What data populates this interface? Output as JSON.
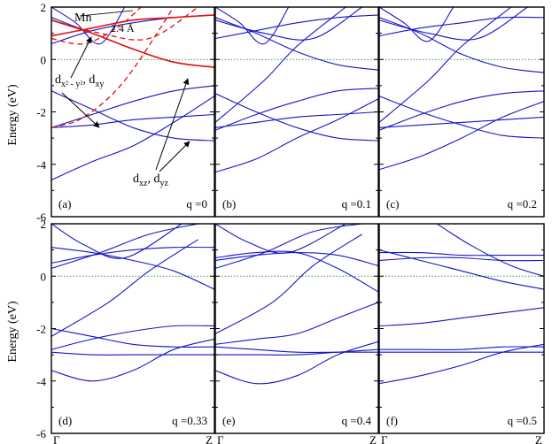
{
  "figure": {
    "y_axis_label": "Energy (eV)",
    "x_tick_start": "Γ",
    "x_tick_end": "Z"
  },
  "colors": {
    "band": "#1515c8",
    "mn": "#e01010",
    "fermi": "#3a9a3a",
    "axis": "#000000"
  },
  "chart_data": [
    {
      "type": "line",
      "panel": "(a)",
      "q_label": "q =0",
      "ylim": [
        -6,
        2
      ],
      "y_ticks": [
        -6,
        -4,
        -2,
        0,
        2
      ],
      "xlim": [
        0,
        1
      ],
      "x_ticks": [
        "Γ",
        "Z"
      ],
      "fermi_level": 0,
      "annotations": [
        "Mn",
        "2.4 Å",
        "d_{x^2-y^2}, d_{xy}",
        "d_{xz}, d_{yz}"
      ],
      "series": [
        {
          "kind": "band",
          "x": [
            0,
            0.25,
            0.5,
            0.75,
            1
          ],
          "y": [
            -4.6,
            -3.9,
            -3.3,
            -2.4,
            -1.4
          ]
        },
        {
          "kind": "band",
          "x": [
            0,
            0.25,
            0.5,
            0.75,
            1
          ],
          "y": [
            -2.6,
            -2.5,
            -2.3,
            -2.2,
            -2.1
          ]
        },
        {
          "kind": "band",
          "x": [
            0,
            0.25,
            0.5,
            0.75,
            1
          ],
          "y": [
            -1.2,
            -1.9,
            -2.6,
            -3.0,
            -3.1
          ]
        },
        {
          "kind": "band",
          "x": [
            0,
            0.25,
            0.5,
            0.75,
            1
          ],
          "y": [
            -2.6,
            -2.1,
            -1.6,
            -1.2,
            -1.0
          ]
        },
        {
          "kind": "band",
          "x": [
            0,
            0.25,
            0.5,
            0.75,
            1
          ],
          "y": [
            0.6,
            1.1,
            1.4,
            1.6,
            1.7
          ]
        },
        {
          "kind": "band",
          "x": [
            0,
            0.25,
            0.5,
            0.75,
            1
          ],
          "y": [
            1.6,
            1.0,
            0.4,
            -0.1,
            -0.3
          ]
        },
        {
          "kind": "band",
          "x": [
            0,
            0.15,
            0.3,
            0.45
          ],
          "y": [
            2.0,
            1.4,
            0.6,
            2.0
          ]
        },
        {
          "kind": "mn",
          "x": [
            0,
            0.25,
            0.5,
            0.75,
            1
          ],
          "y": [
            0.9,
            1.2,
            1.5,
            1.6,
            1.7
          ]
        },
        {
          "kind": "mn",
          "x": [
            0,
            0.25,
            0.5,
            0.75,
            1
          ],
          "y": [
            1.5,
            1.0,
            0.4,
            -0.1,
            -0.3
          ]
        },
        {
          "kind": "mn-dashed",
          "x": [
            0,
            0.2,
            0.45,
            0.75
          ],
          "y": [
            -2.6,
            -2.2,
            -0.8,
            2.0
          ]
        },
        {
          "kind": "mn-dashed",
          "x": [
            0,
            0.2,
            0.4,
            0.55
          ],
          "y": [
            0.8,
            0.6,
            1.2,
            2.0
          ]
        },
        {
          "kind": "mn-dashed",
          "x": [
            0,
            0.3,
            0.6,
            0.9
          ],
          "y": [
            1.5,
            1.0,
            0.8,
            2.0
          ]
        }
      ]
    },
    {
      "type": "line",
      "panel": "(b)",
      "q_label": "q =0.1",
      "ylim": [
        -6,
        2
      ],
      "y_ticks": [
        -6,
        -4,
        -2,
        0,
        2
      ],
      "xlim": [
        0,
        1
      ],
      "x_ticks": [
        "Γ",
        "Z"
      ],
      "fermi_level": 0,
      "series": [
        {
          "kind": "band",
          "x": [
            0,
            0.25,
            0.5,
            0.75,
            1
          ],
          "y": [
            -4.3,
            -3.8,
            -3.0,
            -2.3,
            -1.5
          ]
        },
        {
          "kind": "band",
          "x": [
            0,
            0.25,
            0.5,
            0.75,
            1
          ],
          "y": [
            -2.6,
            -2.4,
            -2.2,
            -2.1,
            -2.0
          ]
        },
        {
          "kind": "band",
          "x": [
            0,
            0.25,
            0.5,
            0.75,
            1
          ],
          "y": [
            -1.3,
            -2.0,
            -2.6,
            -3.0,
            -3.1
          ]
        },
        {
          "kind": "band",
          "x": [
            0,
            0.25,
            0.5,
            0.75,
            1
          ],
          "y": [
            -2.7,
            -2.1,
            -1.6,
            -1.2,
            -1.1
          ]
        },
        {
          "kind": "band",
          "x": [
            0,
            0.25,
            0.5,
            0.75,
            1
          ],
          "y": [
            0.8,
            1.1,
            1.4,
            1.6,
            1.7
          ]
        },
        {
          "kind": "band",
          "x": [
            0,
            0.25,
            0.5,
            0.75,
            1
          ],
          "y": [
            1.6,
            1.0,
            0.3,
            -0.2,
            -0.4
          ]
        },
        {
          "kind": "band",
          "x": [
            0,
            0.15,
            0.3,
            0.45
          ],
          "y": [
            2.0,
            1.4,
            0.6,
            2.0
          ]
        },
        {
          "kind": "band",
          "x": [
            0,
            0.3,
            0.5,
            0.8
          ],
          "y": [
            -2.4,
            -0.8,
            0.5,
            2.0
          ]
        },
        {
          "kind": "band",
          "x": [
            0,
            0.3,
            0.6,
            0.9
          ],
          "y": [
            1.5,
            1.0,
            0.8,
            2.0
          ]
        }
      ]
    },
    {
      "type": "line",
      "panel": "(c)",
      "q_label": "q =0.2",
      "ylim": [
        -6,
        2
      ],
      "y_ticks": [
        -6,
        -4,
        -2,
        0,
        2
      ],
      "xlim": [
        0,
        1
      ],
      "x_ticks": [
        "Γ",
        "Z"
      ],
      "fermi_level": 0,
      "series": [
        {
          "kind": "band",
          "x": [
            0,
            0.25,
            0.5,
            0.75,
            1
          ],
          "y": [
            -4.2,
            -3.7,
            -3.0,
            -2.2,
            -1.6
          ]
        },
        {
          "kind": "band",
          "x": [
            0,
            0.25,
            0.5,
            0.75,
            1
          ],
          "y": [
            -2.6,
            -2.5,
            -2.4,
            -2.3,
            -2.2
          ]
        },
        {
          "kind": "band",
          "x": [
            0,
            0.25,
            0.5,
            0.75,
            1
          ],
          "y": [
            -1.4,
            -2.0,
            -2.5,
            -2.9,
            -3.0
          ]
        },
        {
          "kind": "band",
          "x": [
            0,
            0.25,
            0.5,
            0.75,
            1
          ],
          "y": [
            -2.7,
            -2.1,
            -1.6,
            -1.3,
            -1.2
          ]
        },
        {
          "kind": "band",
          "x": [
            0,
            0.25,
            0.5,
            0.75,
            1
          ],
          "y": [
            0.9,
            1.2,
            1.4,
            1.6,
            1.6
          ]
        },
        {
          "kind": "band",
          "x": [
            0,
            0.25,
            0.5,
            0.75,
            1
          ],
          "y": [
            1.6,
            1.0,
            0.2,
            -0.3,
            -0.5
          ]
        },
        {
          "kind": "band",
          "x": [
            0,
            0.15,
            0.3,
            0.45
          ],
          "y": [
            2.0,
            1.4,
            0.7,
            2.0
          ]
        },
        {
          "kind": "band",
          "x": [
            0,
            0.3,
            0.5,
            0.8
          ],
          "y": [
            -2.4,
            -0.8,
            0.5,
            2.0
          ]
        },
        {
          "kind": "band",
          "x": [
            0,
            0.3,
            0.6,
            0.9
          ],
          "y": [
            1.5,
            1.0,
            0.8,
            2.0
          ]
        }
      ]
    },
    {
      "type": "line",
      "panel": "(d)",
      "q_label": "q =0.33",
      "ylim": [
        -6,
        2
      ],
      "y_ticks": [
        -6,
        -4,
        -2,
        0,
        2
      ],
      "xlim": [
        0,
        1
      ],
      "x_ticks": [
        "Γ",
        "Z"
      ],
      "fermi_level": 0,
      "series": [
        {
          "kind": "band",
          "x": [
            0,
            0.25,
            0.5,
            0.75,
            1
          ],
          "y": [
            -3.6,
            -4.0,
            -3.6,
            -2.8,
            -2.4
          ]
        },
        {
          "kind": "band",
          "x": [
            0,
            0.25,
            0.5,
            0.75,
            1
          ],
          "y": [
            -2.0,
            -2.3,
            -2.6,
            -2.7,
            -2.7
          ]
        },
        {
          "kind": "band",
          "x": [
            0,
            0.25,
            0.5,
            0.75,
            1
          ],
          "y": [
            -2.9,
            -3.0,
            -3.0,
            -3.0,
            -3.0
          ]
        },
        {
          "kind": "band",
          "x": [
            0,
            0.25,
            0.5,
            0.75,
            1
          ],
          "y": [
            -2.8,
            -2.4,
            -2.1,
            -1.9,
            -1.9
          ]
        },
        {
          "kind": "band",
          "x": [
            0,
            0.25,
            0.5,
            0.75,
            1
          ],
          "y": [
            0.5,
            0.8,
            1.0,
            1.1,
            1.1
          ]
        },
        {
          "kind": "band",
          "x": [
            0,
            0.25,
            0.5,
            0.75,
            1
          ],
          "y": [
            1.1,
            0.9,
            0.6,
            0.2,
            -0.5
          ]
        },
        {
          "kind": "band",
          "x": [
            0,
            0.3,
            0.6,
            0.9
          ],
          "y": [
            0.3,
            0.9,
            1.6,
            2.0
          ]
        },
        {
          "kind": "band",
          "x": [
            0,
            0.35,
            0.6,
            0.9
          ],
          "y": [
            -2.3,
            -1.0,
            0.2,
            1.4
          ]
        },
        {
          "kind": "band",
          "x": [
            0,
            0.2,
            0.45,
            0.8
          ],
          "y": [
            2.0,
            1.2,
            0.7,
            2.0
          ]
        }
      ]
    },
    {
      "type": "line",
      "panel": "(e)",
      "q_label": "q =0.4",
      "ylim": [
        -6,
        2
      ],
      "y_ticks": [
        -6,
        -4,
        -2,
        0,
        2
      ],
      "xlim": [
        0,
        1
      ],
      "x_ticks": [
        "Γ",
        "Z"
      ],
      "fermi_level": 0,
      "series": [
        {
          "kind": "band",
          "x": [
            0,
            0.25,
            0.5,
            0.75,
            1
          ],
          "y": [
            -3.6,
            -4.1,
            -3.8,
            -3.0,
            -2.5
          ]
        },
        {
          "kind": "band",
          "x": [
            0,
            0.25,
            0.5,
            0.75,
            1
          ],
          "y": [
            -2.7,
            -2.8,
            -2.9,
            -2.9,
            -2.9
          ]
        },
        {
          "kind": "band",
          "x": [
            0,
            0.25,
            0.5,
            0.75,
            1
          ],
          "y": [
            -3.0,
            -3.0,
            -3.0,
            -2.9,
            -2.8
          ]
        },
        {
          "kind": "band",
          "x": [
            0,
            0.25,
            0.5,
            0.75,
            1
          ],
          "y": [
            -2.6,
            -2.4,
            -2.2,
            -1.6,
            -1.0
          ]
        },
        {
          "kind": "band",
          "x": [
            0,
            0.25,
            0.5,
            0.75,
            1
          ],
          "y": [
            0.6,
            0.8,
            0.9,
            0.8,
            0.4
          ]
        },
        {
          "kind": "band",
          "x": [
            0,
            0.25,
            0.5,
            0.75,
            1
          ],
          "y": [
            0.7,
            0.9,
            0.9,
            0.3,
            -0.6
          ]
        },
        {
          "kind": "band",
          "x": [
            0,
            0.3,
            0.6,
            0.9
          ],
          "y": [
            0.3,
            0.9,
            1.7,
            2.0
          ]
        },
        {
          "kind": "band",
          "x": [
            0,
            0.35,
            0.6,
            0.9
          ],
          "y": [
            -2.2,
            -1.0,
            0.4,
            1.6
          ]
        },
        {
          "kind": "band",
          "x": [
            0,
            0.2,
            0.45,
            0.8
          ],
          "y": [
            2.0,
            1.3,
            0.9,
            2.0
          ]
        }
      ]
    },
    {
      "type": "line",
      "panel": "(f)",
      "q_label": "q =0.5",
      "ylim": [
        -6,
        2
      ],
      "y_ticks": [
        -6,
        -4,
        -2,
        0,
        2
      ],
      "xlim": [
        0,
        1
      ],
      "x_ticks": [
        "Γ",
        "Z"
      ],
      "fermi_level": 0,
      "series": [
        {
          "kind": "band",
          "x": [
            0,
            0.25,
            0.5,
            0.75,
            1
          ],
          "y": [
            -4.1,
            -3.8,
            -3.4,
            -2.9,
            -2.6
          ]
        },
        {
          "kind": "band",
          "x": [
            0,
            0.25,
            0.5,
            0.75,
            1
          ],
          "y": [
            -2.8,
            -2.8,
            -2.8,
            -2.7,
            -2.7
          ]
        },
        {
          "kind": "band",
          "x": [
            0,
            0.25,
            0.5,
            0.75,
            1
          ],
          "y": [
            -2.9,
            -2.9,
            -2.9,
            -2.9,
            -2.9
          ]
        },
        {
          "kind": "band",
          "x": [
            0,
            0.25,
            0.5,
            0.75,
            1
          ],
          "y": [
            -1.9,
            -1.8,
            -1.6,
            -1.4,
            -1.2
          ]
        },
        {
          "kind": "band",
          "x": [
            0,
            0.25,
            0.5,
            0.75,
            1
          ],
          "y": [
            0.9,
            0.9,
            0.8,
            0.8,
            0.8
          ]
        },
        {
          "kind": "band",
          "x": [
            0,
            0.25,
            0.5,
            0.75,
            1
          ],
          "y": [
            0.6,
            0.7,
            0.7,
            0.6,
            0.6
          ]
        },
        {
          "kind": "band",
          "x": [
            0,
            0.25,
            0.5,
            0.75,
            1
          ],
          "y": [
            1.0,
            0.6,
            0.2,
            -0.2,
            -0.5
          ]
        },
        {
          "kind": "band",
          "x": [
            0.35,
            0.55,
            0.8,
            1
          ],
          "y": [
            2.0,
            1.2,
            0.4,
            0.0
          ]
        }
      ]
    }
  ]
}
